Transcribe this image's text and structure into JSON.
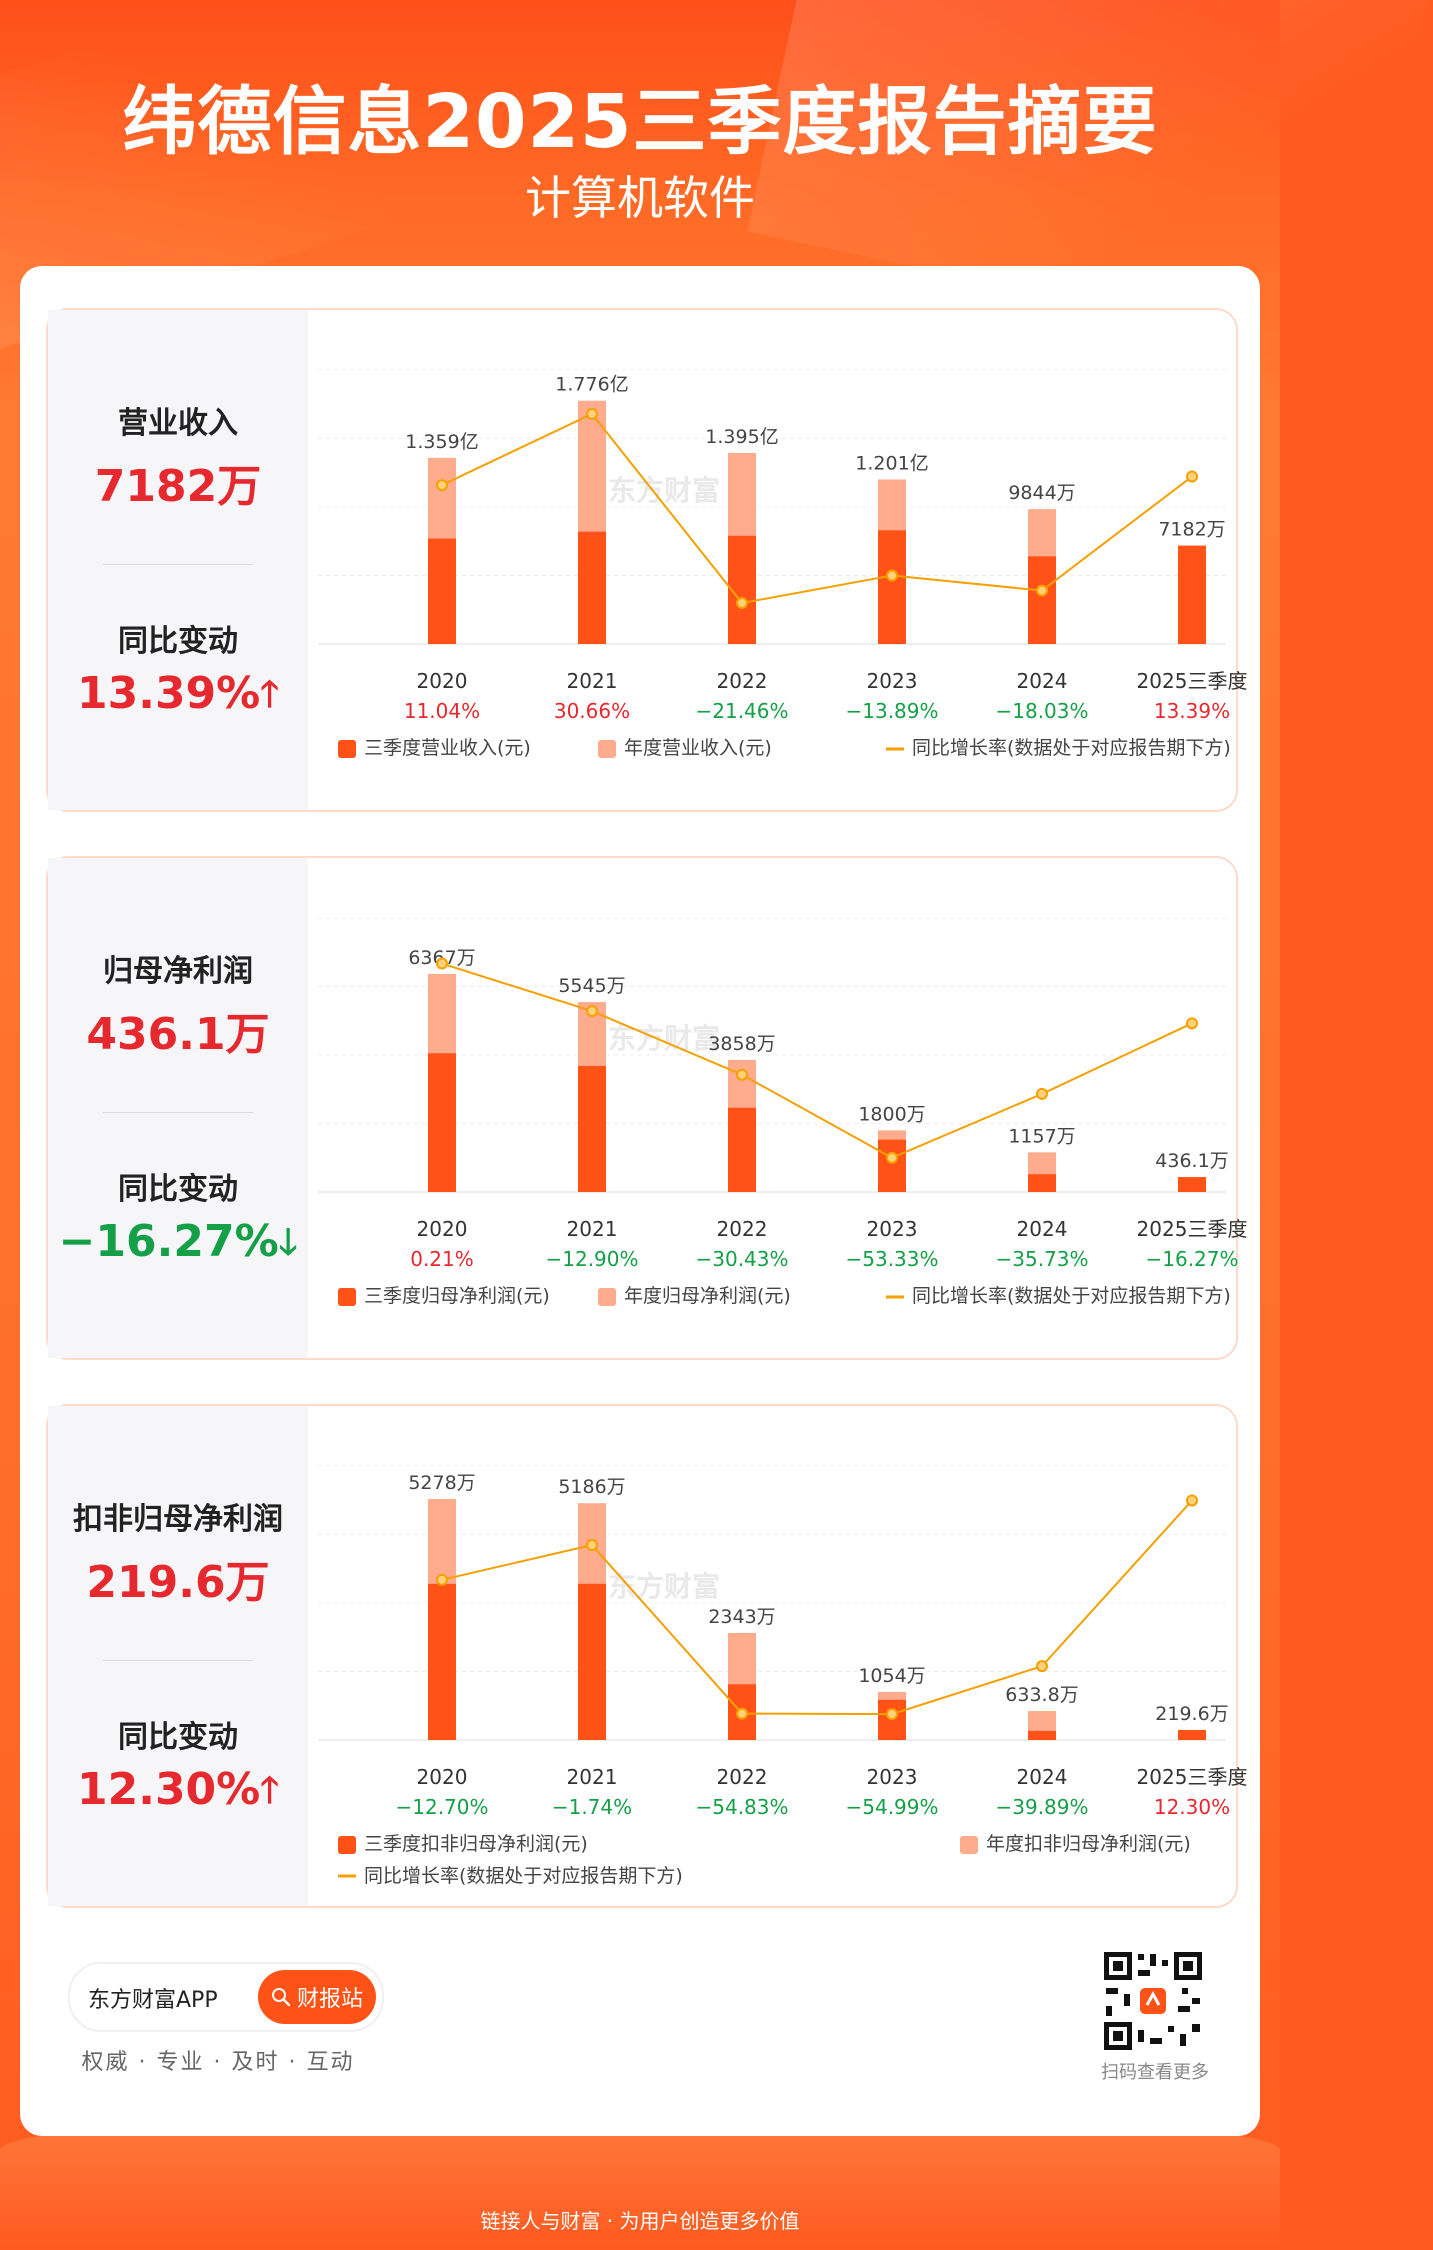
{
  "header": {
    "title": "纬德信息2025三季度报告摘要",
    "subtitle": "计算机软件"
  },
  "colors": {
    "q3_bar": "#ff5216",
    "annual_bar": "#ffab8e",
    "line": "#f5a000",
    "positive": "#e6282f",
    "negative": "#15a048"
  },
  "cards": [
    {
      "metric_label": "营业收入",
      "metric_value": "7182万",
      "change_label": "同比变动",
      "change_value": "13.39%",
      "change_dir": "up"
    },
    {
      "metric_label": "归母净利润",
      "metric_value": "436.1万",
      "change_label": "同比变动",
      "change_value": "−16.27%",
      "change_dir": "down"
    },
    {
      "metric_label": "扣非归母净利润",
      "metric_value": "219.6万",
      "change_label": "同比变动",
      "change_value": "12.30%",
      "change_dir": "up"
    }
  ],
  "chart_data": [
    {
      "type": "bar",
      "title": "营业收入",
      "categories": [
        "2020",
        "2021",
        "2022",
        "2023",
        "2024",
        "2025三季度"
      ],
      "unit": "亿元",
      "series": [
        {
          "name": "三季度营业收入(元)",
          "values": [
            0.77,
            0.82,
            0.79,
            0.83,
            0.64,
            0.7182
          ]
        },
        {
          "name": "年度营业收入(元)",
          "values": [
            1.359,
            1.776,
            1.395,
            1.201,
            0.9844,
            null
          ]
        },
        {
          "name": "同比增长率(数据处于对应报告期下方)",
          "values": [
            11.04,
            30.66,
            -21.46,
            -13.89,
            -18.03,
            13.39
          ]
        }
      ],
      "bar_labels": [
        "1.359亿",
        "1.776亿",
        "1.395亿",
        "1.201亿",
        "9844万",
        "7182万"
      ],
      "growth_labels": [
        "11.04%",
        "30.66%",
        "−21.46%",
        "−13.89%",
        "−18.03%",
        "13.39%"
      ],
      "legend": [
        "三季度营业收入(元)",
        "年度营业收入(元)",
        "同比增长率(数据处于对应报告期下方)"
      ],
      "ylim": [
        0,
        2.0
      ],
      "growth_range": [
        -30,
        40
      ],
      "watermark": "东方财富"
    },
    {
      "type": "bar",
      "title": "归母净利润",
      "categories": [
        "2020",
        "2021",
        "2022",
        "2023",
        "2024",
        "2025三季度"
      ],
      "unit": "万元",
      "series": [
        {
          "name": "三季度归母净利润(元)",
          "values": [
            4050,
            3680,
            2460,
            1530,
            520,
            436.1
          ]
        },
        {
          "name": "年度归母净利润(元)",
          "values": [
            6367,
            5545,
            3858,
            1800,
            1157,
            null
          ]
        },
        {
          "name": "同比增长率(数据处于对应报告期下方)",
          "values": [
            0.21,
            -12.9,
            -30.43,
            -53.33,
            -35.73,
            -16.27
          ]
        }
      ],
      "bar_labels": [
        "6367万",
        "5545万",
        "3858万",
        "1800万",
        "1157万",
        "436.1万"
      ],
      "growth_labels": [
        "0.21%",
        "−12.90%",
        "−30.43%",
        "−53.33%",
        "−35.73%",
        "−16.27%"
      ],
      "legend": [
        "三季度归母净利润(元)",
        "年度归母净利润(元)",
        "同比增长率(数据处于对应报告期下方)"
      ],
      "ylim": [
        0,
        8000
      ],
      "growth_range": [
        -60,
        10
      ],
      "watermark": "东方财富"
    },
    {
      "type": "bar",
      "title": "扣非归母净利润",
      "categories": [
        "2020",
        "2021",
        "2022",
        "2023",
        "2024",
        "2025三季度"
      ],
      "unit": "万元",
      "series": [
        {
          "name": "三季度扣非归母净利润(元)",
          "values": [
            3420,
            3420,
            1220,
            880,
            200,
            219.6
          ]
        },
        {
          "name": "年度扣非归母净利润(元)",
          "values": [
            5278,
            5186,
            2343,
            1054,
            633.8,
            null
          ]
        },
        {
          "name": "同比增长率(数据处于对应报告期下方)",
          "values": [
            -12.7,
            -1.74,
            -54.83,
            -54.99,
            -39.89,
            12.3
          ]
        }
      ],
      "bar_labels": [
        "5278万",
        "5186万",
        "2343万",
        "1054万",
        "633.8万",
        "219.6万"
      ],
      "growth_labels": [
        "−12.70%",
        "−1.74%",
        "−54.83%",
        "−54.99%",
        "−39.89%",
        "12.30%"
      ],
      "legend": [
        "三季度扣非归母净利润(元)",
        "年度扣非归母净利润(元)",
        "同比增长率(数据处于对应报告期下方)"
      ],
      "ylim": [
        0,
        6000
      ],
      "growth_range": [
        -60,
        20
      ],
      "watermark": "东方财富"
    }
  ],
  "footer": {
    "app_name": "东方财富APP",
    "button_label": "财报站",
    "slogan": "权威 · 专业 · 及时 · 互动",
    "qr_caption": "扫码查看更多",
    "bottom_line": "链接人与财富 · 为用户创造更多价值"
  }
}
